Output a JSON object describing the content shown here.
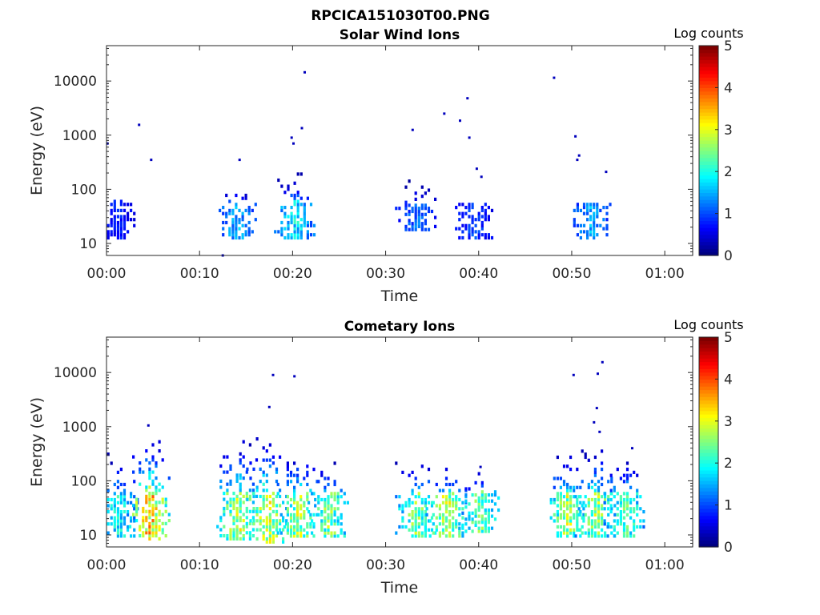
{
  "figure": {
    "title": "RPCICA151030T00.PNG"
  },
  "chart_data": [
    {
      "type": "heatmap",
      "title": "Solar Wind Ions",
      "xlabel": "Time",
      "ylabel": "Energy (eV)",
      "x_ticks": [
        "00:00",
        "00:10",
        "00:20",
        "00:30",
        "00:40",
        "00:50",
        "01:00"
      ],
      "xlim_minutes": [
        0,
        63
      ],
      "y_scale": "log",
      "y_ticks": [
        10,
        100,
        1000,
        10000
      ],
      "y_tick_labels": [
        "10",
        "100",
        "1000",
        "10000"
      ],
      "ylim": [
        6,
        45000
      ],
      "colorbar": {
        "label": "Log counts",
        "min": 0,
        "max": 5,
        "ticks": [
          "0",
          "1",
          "2",
          "3",
          "4",
          "5"
        ],
        "colormap": "jet"
      },
      "bursts": [
        {
          "t": 1.2,
          "emin": 12,
          "emax": 85,
          "level": 0.8
        },
        {
          "t": 13.9,
          "emin": 12,
          "emax": 110,
          "level": 1.6
        },
        {
          "t": 20.2,
          "emin": 12,
          "emax": 190,
          "level": 1.9
        },
        {
          "t": 33.2,
          "emin": 17,
          "emax": 140,
          "level": 1.2
        },
        {
          "t": 39.3,
          "emin": 12,
          "emax": 60,
          "level": 1.0
        },
        {
          "t": 52.0,
          "emin": 12,
          "emax": 65,
          "level": 1.5
        }
      ],
      "points": [
        {
          "t": 0.1,
          "e": 700,
          "level": 0.3
        },
        {
          "t": 3.5,
          "e": 1550,
          "level": 0.3
        },
        {
          "t": 4.8,
          "e": 350,
          "level": 0.3
        },
        {
          "t": 14.3,
          "e": 350,
          "level": 0.3
        },
        {
          "t": 19.9,
          "e": 900,
          "level": 0.3
        },
        {
          "t": 20.1,
          "e": 700,
          "level": 0.3
        },
        {
          "t": 21.0,
          "e": 1350,
          "level": 0.3
        },
        {
          "t": 21.3,
          "e": 14500,
          "level": 0.3
        },
        {
          "t": 32.9,
          "e": 1250,
          "level": 0.3
        },
        {
          "t": 36.3,
          "e": 2500,
          "level": 0.3
        },
        {
          "t": 38.0,
          "e": 1850,
          "level": 0.3
        },
        {
          "t": 38.8,
          "e": 4800,
          "level": 0.3
        },
        {
          "t": 39.0,
          "e": 900,
          "level": 0.3
        },
        {
          "t": 39.8,
          "e": 240,
          "level": 0.3
        },
        {
          "t": 40.3,
          "e": 170,
          "level": 0.3
        },
        {
          "t": 48.1,
          "e": 11500,
          "level": 0.3
        },
        {
          "t": 50.4,
          "e": 950,
          "level": 0.3
        },
        {
          "t": 50.8,
          "e": 420,
          "level": 0.3
        },
        {
          "t": 50.6,
          "e": 350,
          "level": 0.3
        },
        {
          "t": 53.7,
          "e": 210,
          "level": 0.3
        },
        {
          "t": 12.5,
          "e": 6,
          "level": 0.3
        }
      ]
    },
    {
      "type": "heatmap",
      "title": "Cometary Ions",
      "xlabel": "Time",
      "ylabel": "Energy (eV)",
      "x_ticks": [
        "00:00",
        "00:10",
        "00:20",
        "00:30",
        "00:40",
        "00:50",
        "01:00"
      ],
      "xlim_minutes": [
        0,
        63
      ],
      "y_scale": "log",
      "y_ticks": [
        10,
        100,
        1000,
        10000
      ],
      "y_tick_labels": [
        "10",
        "100",
        "1000",
        "10000"
      ],
      "ylim": [
        6,
        45000
      ],
      "colorbar": {
        "label": "Log counts",
        "min": 0,
        "max": 5,
        "ticks": [
          "0",
          "1",
          "2",
          "3",
          "4",
          "5"
        ],
        "colormap": "jet"
      },
      "bursts": [
        {
          "t": 1.2,
          "emin": 9,
          "emax": 300,
          "level": 2.0
        },
        {
          "t": 4.6,
          "emin": 8,
          "emax": 550,
          "level": 3.5
        },
        {
          "t": 14.0,
          "emin": 8,
          "emax": 500,
          "level": 2.9
        },
        {
          "t": 17.2,
          "emin": 7,
          "emax": 650,
          "level": 3.0
        },
        {
          "t": 20.5,
          "emin": 9,
          "emax": 300,
          "level": 2.8
        },
        {
          "t": 23.8,
          "emin": 9,
          "emax": 200,
          "level": 2.6
        },
        {
          "t": 33.2,
          "emin": 9,
          "emax": 250,
          "level": 2.6
        },
        {
          "t": 36.5,
          "emin": 9,
          "emax": 170,
          "level": 2.9
        },
        {
          "t": 40.0,
          "emin": 11,
          "emax": 130,
          "level": 2.5
        },
        {
          "t": 49.5,
          "emin": 9,
          "emax": 300,
          "level": 2.8
        },
        {
          "t": 52.5,
          "emin": 9,
          "emax": 400,
          "level": 2.7
        },
        {
          "t": 55.6,
          "emin": 9,
          "emax": 250,
          "level": 2.4
        }
      ],
      "points": [
        {
          "t": 4.5,
          "e": 1050,
          "level": 0.3
        },
        {
          "t": 17.5,
          "e": 2300,
          "level": 0.3
        },
        {
          "t": 17.9,
          "e": 9000,
          "level": 0.3
        },
        {
          "t": 20.2,
          "e": 8500,
          "level": 0.3
        },
        {
          "t": 50.2,
          "e": 9000,
          "level": 0.3
        },
        {
          "t": 52.8,
          "e": 9500,
          "level": 0.3
        },
        {
          "t": 53.3,
          "e": 15500,
          "level": 0.3
        },
        {
          "t": 52.7,
          "e": 2200,
          "level": 0.3
        },
        {
          "t": 52.4,
          "e": 1200,
          "level": 0.3
        },
        {
          "t": 53.0,
          "e": 800,
          "level": 0.3
        },
        {
          "t": 56.5,
          "e": 400,
          "level": 0.3
        },
        {
          "t": 40.2,
          "e": 180,
          "level": 0.3
        }
      ]
    }
  ]
}
